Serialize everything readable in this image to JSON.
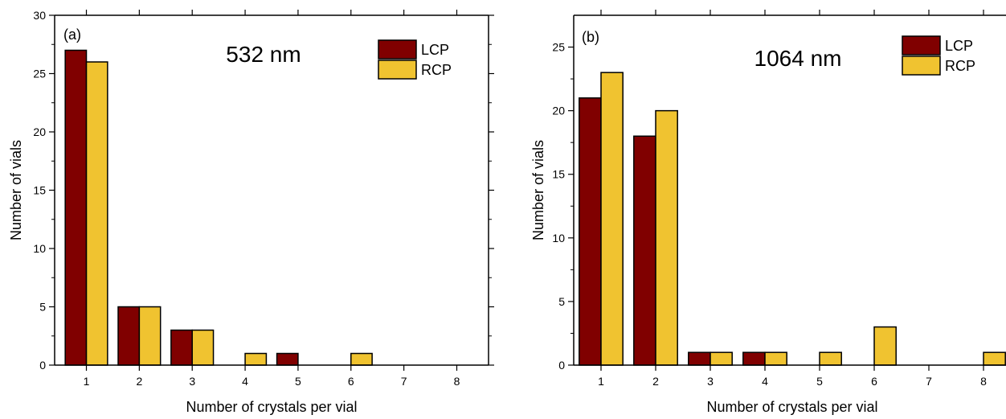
{
  "chart_data": [
    {
      "type": "bar",
      "panel_label": "(a)",
      "annotation": "532 nm",
      "xlabel": "Number of crystals per vial",
      "ylabel": "Number of vials",
      "categories": [
        "1",
        "2",
        "3",
        "4",
        "5",
        "6",
        "7",
        "8"
      ],
      "ylim": [
        0,
        30
      ],
      "yticks": [
        "0",
        "5",
        "10",
        "15",
        "20",
        "25",
        "30"
      ],
      "grid": false,
      "legend_position": "top-right",
      "series": [
        {
          "name": "LCP",
          "color": "#800000",
          "values": [
            27,
            5,
            3,
            0,
            1,
            0,
            0,
            0
          ]
        },
        {
          "name": "RCP",
          "color": "#f0c330",
          "values": [
            26,
            5,
            3,
            1,
            0,
            1,
            0,
            0
          ]
        }
      ]
    },
    {
      "type": "bar",
      "panel_label": "(b)",
      "annotation": "1064 nm",
      "xlabel": "Number of crystals per vial",
      "ylabel": "Number of vials",
      "categories": [
        "1",
        "2",
        "3",
        "4",
        "5",
        "6",
        "7",
        "8"
      ],
      "ylim": [
        0,
        27.5
      ],
      "yticks": [
        "0",
        "5",
        "10",
        "15",
        "20",
        "25"
      ],
      "grid": false,
      "legend_position": "top-right",
      "series": [
        {
          "name": "LCP",
          "color": "#800000",
          "values": [
            21,
            18,
            1,
            1,
            0,
            0,
            0,
            0
          ]
        },
        {
          "name": "RCP",
          "color": "#f0c330",
          "values": [
            23,
            20,
            1,
            1,
            1,
            3,
            0,
            1
          ]
        }
      ]
    }
  ]
}
